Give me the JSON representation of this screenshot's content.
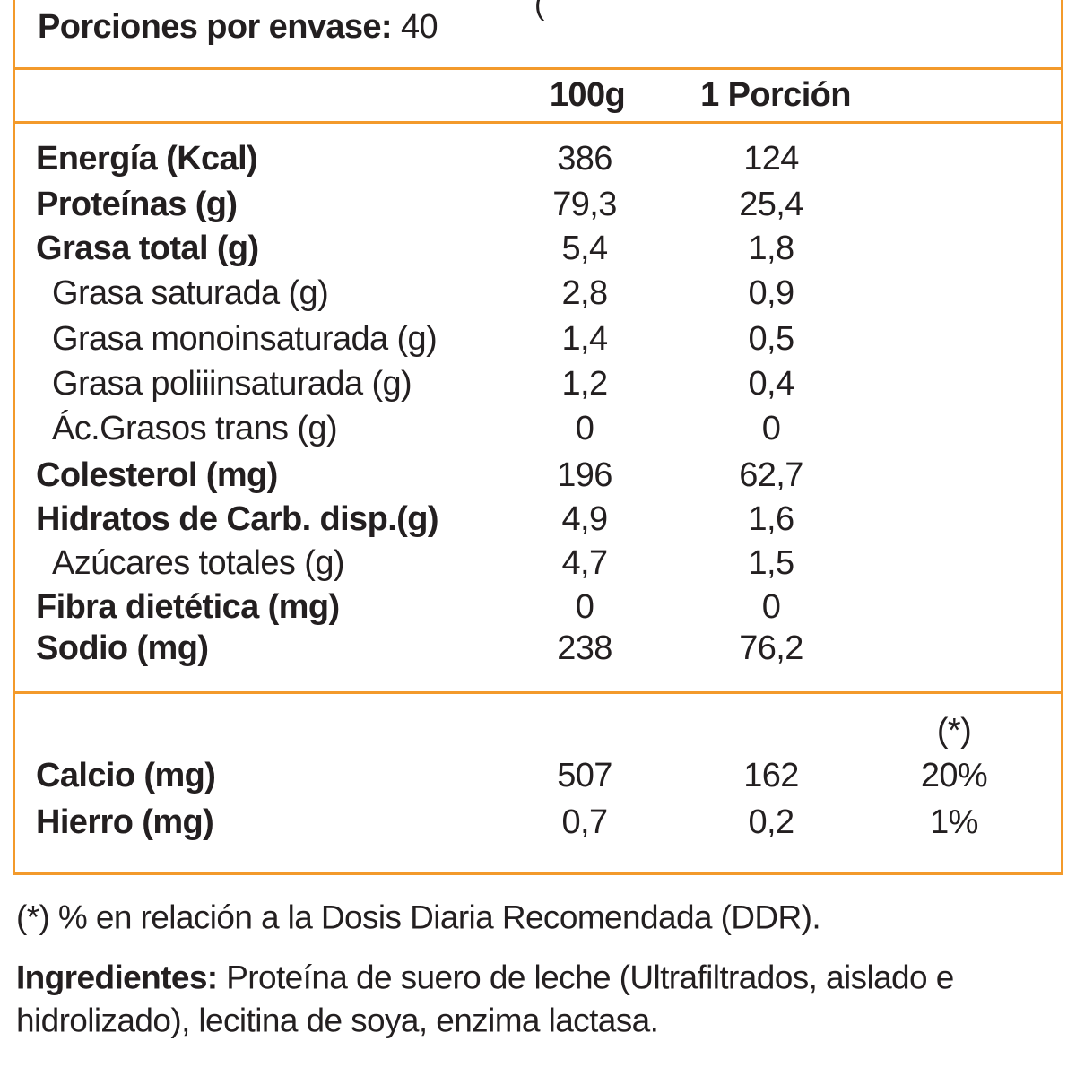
{
  "colors": {
    "border": "#F39A2B",
    "text": "#231f20"
  },
  "header": {
    "cropped_fragment": "(",
    "servings_label": "Porciones por envase:",
    "servings_value": "40"
  },
  "columns": {
    "per100": "100g",
    "perServing": "1 Porción"
  },
  "nutrients": [
    {
      "label": "Energía (Kcal)",
      "per100": "386",
      "perServing": "124",
      "bold": true
    },
    {
      "label": "Proteínas (g)",
      "per100": "79,3",
      "perServing": "25,4",
      "bold": true
    },
    {
      "label": "Grasa total (g)",
      "per100": "5,4",
      "perServing": "1,8",
      "bold": true
    },
    {
      "label": "Grasa saturada (g)",
      "per100": "2,8",
      "perServing": "0,9",
      "bold": false
    },
    {
      "label": "Grasa monoinsaturada (g)",
      "per100": "1,4",
      "perServing": "0,5",
      "bold": false
    },
    {
      "label": "Grasa poliiinsaturada (g)",
      "per100": "1,2",
      "perServing": "0,4",
      "bold": false
    },
    {
      "label": "Ác.Grasos trans (g)",
      "per100": "0",
      "perServing": "0",
      "bold": false
    },
    {
      "label": "Colesterol (mg)",
      "per100": "196",
      "perServing": "62,7",
      "bold": true
    },
    {
      "label": "Hidratos de Carb. disp.(g)",
      "per100": "4,9",
      "perServing": "1,6",
      "bold": true
    },
    {
      "label": "Azúcares totales (g)",
      "per100": "4,7",
      "perServing": "1,5",
      "bold": false
    },
    {
      "label": "Fibra dietética (mg)",
      "per100": "0",
      "perServing": "0",
      "bold": true
    },
    {
      "label": "Sodio (mg)",
      "per100": "238",
      "perServing": "76,2",
      "bold": true
    }
  ],
  "minerals": {
    "ddr_header": "(*)",
    "rows": [
      {
        "label": "Calcio (mg)",
        "per100": "507",
        "perServing": "162",
        "ddr": "20%"
      },
      {
        "label": "Hierro (mg)",
        "per100": "0,7",
        "perServing": "0,2",
        "ddr": "1%"
      }
    ]
  },
  "footnote": "(*) % en relación a la Dosis Diaria Recomendada (DDR).",
  "ingredients": {
    "label": "Ingredientes:",
    "line1": "Proteína de suero de leche (Ultrafiltrados, aislado e",
    "line2": "hidrolizado), lecitina de soya, enzima lactasa."
  }
}
